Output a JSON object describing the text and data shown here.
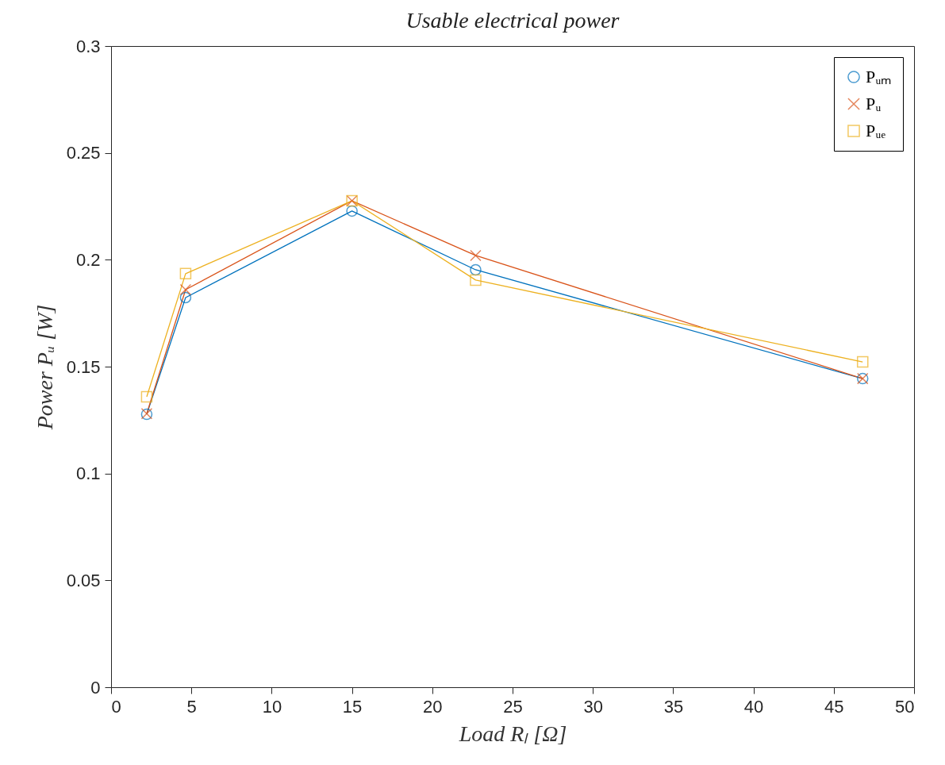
{
  "chart_data": {
    "type": "line",
    "title": "Usable electrical power",
    "xlabel": "Load Rₗ [Ω]",
    "ylabel": "Power Pᵤ [W]",
    "x": [
      2.22,
      4.64,
      15.0,
      22.7,
      46.8
    ],
    "series": [
      {
        "name": "Pᵤₘ",
        "color": "#0072bd",
        "marker": "circle",
        "values": [
          0.1277,
          0.1823,
          0.2228,
          0.1953,
          0.1444
        ]
      },
      {
        "name": "Pᵤ",
        "color": "#d95319",
        "marker": "cross",
        "values": [
          0.128,
          0.186,
          0.2276,
          0.202,
          0.1444
        ]
      },
      {
        "name": "Pᵤₑ",
        "color": "#edb120",
        "marker": "square",
        "values": [
          0.1359,
          0.1935,
          0.2276,
          0.1905,
          0.1522
        ]
      }
    ],
    "xlim": [
      0,
      50
    ],
    "xticks": [
      0,
      5,
      10,
      15,
      20,
      25,
      30,
      35,
      40,
      45,
      50
    ],
    "ylim": [
      0,
      0.3
    ],
    "yticks": [
      0,
      0.05,
      0.1,
      0.15,
      0.2,
      0.25,
      0.3
    ],
    "grid": false,
    "legend": "top right",
    "line_style": "solid"
  }
}
